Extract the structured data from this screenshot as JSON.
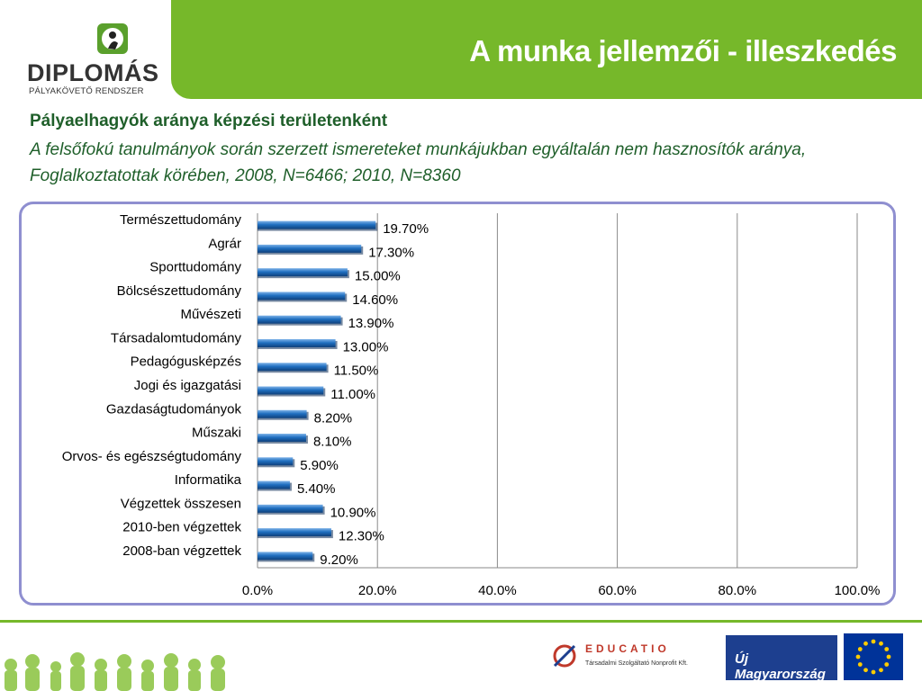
{
  "header": {
    "title": "A munka jellemzői - illeszkedés",
    "logo_name": "DIPLOMÁS",
    "logo_sub": "PÁLYAKÖVETŐ RENDSZER"
  },
  "subtitle": {
    "bold": "Pályaelhagyók aránya képzési területenként",
    "italic": "A felsőfokú tanulmányok során szerzett ismereteket munkájukban egyáltalán nem hasznosítók aránya, Foglalkoztatottak körében, 2008, N=6466; 2010, N=8360"
  },
  "footer": {
    "educatio_name": "EDUCATIO",
    "educatio_sub": "Társadalmi Szolgáltató Nonprofit Kft.",
    "umft_text": "Új Magyarország"
  },
  "colors": {
    "header_green": "#76b82a",
    "bar_blue": "#1f6fc0",
    "frame_border": "#8f8fd0"
  },
  "chart_data": {
    "type": "bar",
    "orientation": "horizontal",
    "categories": [
      "Természettudomány",
      "Agrár",
      "Sporttudomány",
      "Bölcsészettudomány",
      "Művészeti",
      "Társadalomtudomány",
      "Pedagógusképzés",
      "Jogi és igazgatási",
      "Gazdaságtudományok",
      "Műszaki",
      "Orvos- és egészségtudomány",
      "Informatika",
      "Végzettek összesen",
      "2010-ben végzettek",
      "2008-ban végzettek"
    ],
    "values": [
      19.7,
      17.3,
      15.0,
      14.6,
      13.9,
      13.0,
      11.5,
      11.0,
      8.2,
      8.1,
      5.9,
      5.4,
      10.9,
      12.3,
      9.2
    ],
    "value_labels": [
      "19.70%",
      "17.30%",
      "15.00%",
      "14.60%",
      "13.90%",
      "13.00%",
      "11.50%",
      "11.00%",
      "8.20%",
      "8.10%",
      "5.90%",
      "5.40%",
      "10.90%",
      "12.30%",
      "9.20%"
    ],
    "xlim": [
      0,
      100
    ],
    "x_ticks": [
      0,
      20,
      40,
      60,
      80,
      100
    ],
    "x_tick_labels": [
      "0.0%",
      "20.0%",
      "40.0%",
      "60.0%",
      "80.0%",
      "100.0%"
    ],
    "grid": "vertical"
  }
}
